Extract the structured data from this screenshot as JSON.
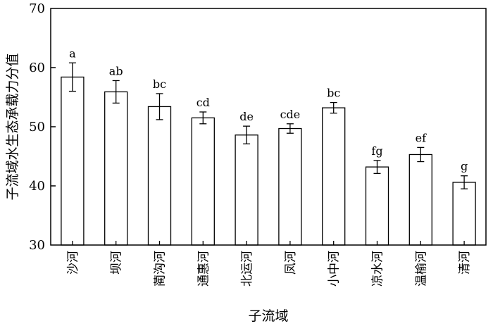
{
  "chart_data": {
    "type": "bar",
    "xlabel": "子流域",
    "ylabel": "子流域水生态承载力分值",
    "ylim": [
      30,
      70
    ],
    "yticks": [
      "30",
      "40",
      "50",
      "60",
      "70"
    ],
    "grid": false,
    "categories": [
      "沙河",
      "坝河",
      "蔺沟河",
      "通惠河",
      "北运河",
      "凤河",
      "小中河",
      "凉水河",
      "温榆河",
      "清河"
    ],
    "values": [
      58.4,
      55.9,
      53.4,
      51.5,
      48.6,
      49.7,
      53.2,
      43.2,
      45.3,
      40.6
    ],
    "errors": [
      2.4,
      1.9,
      2.2,
      1.0,
      1.5,
      0.8,
      0.9,
      1.1,
      1.2,
      1.1
    ],
    "significance": [
      "a",
      "ab",
      "bc",
      "cd",
      "de",
      "cde",
      "bc",
      "fg",
      "ef",
      "g"
    ]
  }
}
